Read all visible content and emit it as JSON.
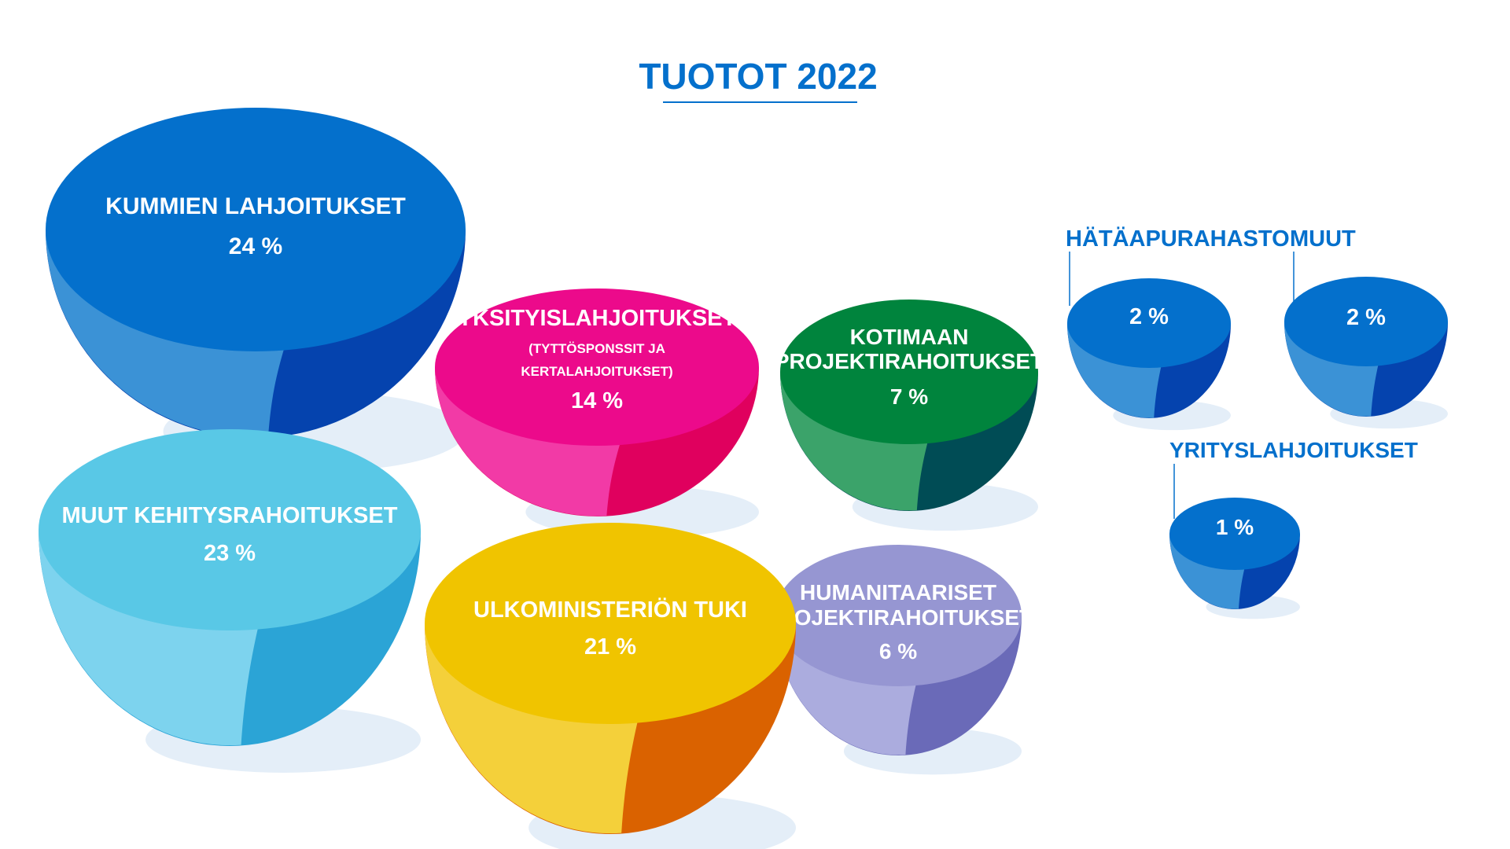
{
  "chart_data": {
    "type": "bubble",
    "title": "TUOTOT 2022",
    "unit": "%",
    "items": [
      {
        "label": "KUMMIEN LAHJOITUKSET",
        "sublabel": "",
        "value": 24,
        "value_text": "24 %",
        "colors": {
          "top": "#0470CC",
          "front": "#3B92D6",
          "side": "#0543AE"
        }
      },
      {
        "label": "MUUT KEHITYSRAHOITUKSET",
        "sublabel": "",
        "value": 23,
        "value_text": "23 %",
        "colors": {
          "top": "#59C8E6",
          "front": "#7DD3EE",
          "side": "#2BA4D6"
        }
      },
      {
        "label": "ULKOMINISTERIÖN TUKI",
        "sublabel": "",
        "value": 21,
        "value_text": "21 %",
        "colors": {
          "top": "#F0C400",
          "front": "#F4D03A",
          "side": "#DA6200"
        }
      },
      {
        "label": "YKSITYISLAHJOITUKSET",
        "sublabel": "(TYTTÖSPONSSIT JA KERTALAHJOITUKSET)",
        "value": 14,
        "value_text": "14 %",
        "colors": {
          "top": "#EC0A8B",
          "front": "#F23AA6",
          "side": "#E0005E"
        }
      },
      {
        "label": "KOTIMAAN PROJEKTIRAHOITUKSET",
        "sublabel": "",
        "value": 7,
        "value_text": "7 %",
        "colors": {
          "top": "#00843D",
          "front": "#3BA36A",
          "side": "#004C55"
        }
      },
      {
        "label": "HUMANITAARISET PROJEKTIRAHOITUKSET",
        "sublabel": "",
        "value": 6,
        "value_text": "6 %",
        "colors": {
          "top": "#9696D2",
          "front": "#ABACDE",
          "side": "#6A6AB8"
        }
      },
      {
        "label": "HÄTÄAPURAHASTO",
        "sublabel": "",
        "value": 2,
        "value_text": "2 %",
        "colors": {
          "top": "#0470CC",
          "front": "#3B92D6",
          "side": "#0543AE"
        }
      },
      {
        "label": "MUUT",
        "sublabel": "",
        "value": 2,
        "value_text": "2 %",
        "colors": {
          "top": "#0470CC",
          "front": "#3B92D6",
          "side": "#0543AE"
        }
      },
      {
        "label": "YRITYSLAHJOITUKSET",
        "sublabel": "",
        "value": 1,
        "value_text": "1 %",
        "colors": {
          "top": "#0470CC",
          "front": "#3B92D6",
          "side": "#0543AE"
        }
      }
    ],
    "title_color": "#0470CC",
    "external_label_color": "#0470CC",
    "shadow_color": "#E4EEF8"
  }
}
